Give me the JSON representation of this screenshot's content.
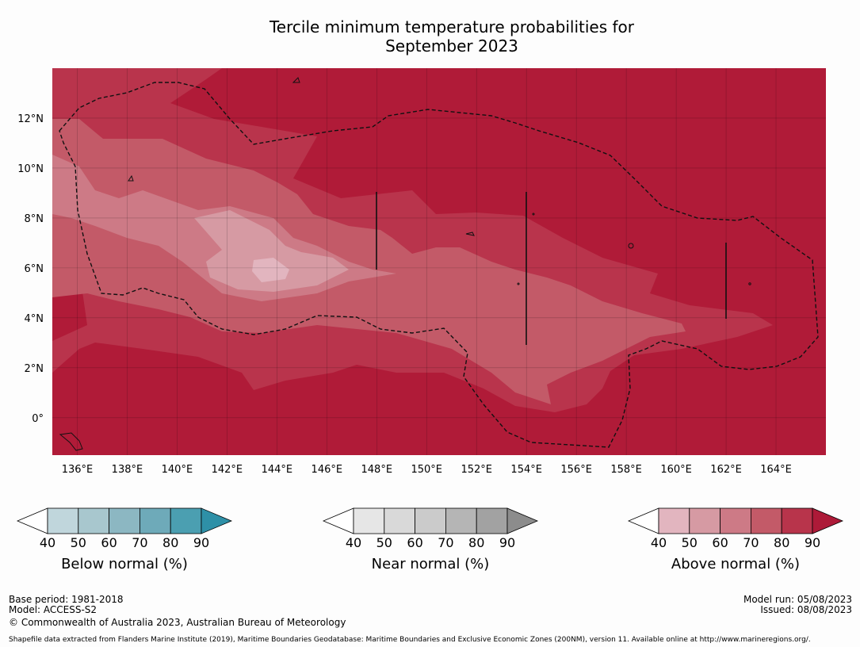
{
  "title": {
    "line1": "Tercile minimum temperature probabilities for",
    "line2": "September 2023"
  },
  "map": {
    "lon_range": [
      135,
      166
    ],
    "lat_range": [
      -1.5,
      14
    ],
    "lon_ticks": [
      "136°E",
      "138°E",
      "140°E",
      "142°E",
      "144°E",
      "146°E",
      "148°E",
      "150°E",
      "152°E",
      "154°E",
      "156°E",
      "158°E",
      "160°E",
      "162°E",
      "164°E"
    ],
    "lat_ticks": [
      "12°N",
      "10°N",
      "8°N",
      "6°N",
      "4°N",
      "2°N",
      "0°"
    ],
    "background_color": "#b01b38"
  },
  "legends": [
    {
      "label": "Below normal (%)",
      "ticks": [
        "40",
        "50",
        "60",
        "70",
        "80",
        "90"
      ],
      "colors": [
        "#c0d6dc",
        "#a8c7ce",
        "#8cb7c2",
        "#6eaab9",
        "#4b9fb1",
        "#2e90a7"
      ]
    },
    {
      "label": "Near normal (%)",
      "ticks": [
        "40",
        "50",
        "60",
        "70",
        "80",
        "90"
      ],
      "colors": [
        "#e6e6e6",
        "#d9d9d9",
        "#cbcbcb",
        "#b5b5b5",
        "#a2a2a2",
        "#8c8c8c"
      ]
    },
    {
      "label": "Above normal (%)",
      "ticks": [
        "40",
        "50",
        "60",
        "70",
        "80",
        "90"
      ],
      "colors": [
        "#e2b5bf",
        "#d69aa3",
        "#cd7a86",
        "#c35a68",
        "#b8344b",
        "#ad1a38"
      ]
    }
  ],
  "footer": {
    "base_period": "Base period: 1981-2018",
    "model": "Model: ACCESS-S2",
    "copyright": "© Commonwealth of Australia 2023, Australian Bureau of Meteorology",
    "model_run": "Model run: 05/08/2023",
    "issued": "Issued: 08/08/2023",
    "shapefile_note": "Shapefile data extracted from Flanders Marine Institute (2019), Maritime Boundaries Geodatabase: Maritime Boundaries and Exclusive Economic Zones (200NM), version 11. Available online at http://www.marineregions.org/."
  }
}
